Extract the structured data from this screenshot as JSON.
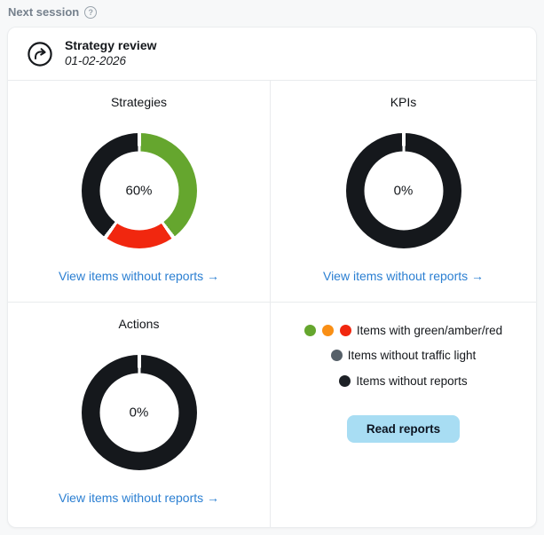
{
  "page": {
    "label": "Next session",
    "help_icon": "question-circle"
  },
  "session_card": {
    "title": "Strategy review",
    "date": "01-02-2026"
  },
  "chart_data": [
    {
      "type": "donut",
      "title": "Strategies",
      "center_label": "60%",
      "link_label": "View items without reports →",
      "segments": [
        {
          "label": "items with green",
          "value": 40,
          "color": "#65a62e"
        },
        {
          "label": "items with red",
          "value": 20,
          "color": "#f1270f"
        },
        {
          "label": "items without reports",
          "value": 40,
          "color": "#15181c"
        }
      ]
    },
    {
      "type": "donut",
      "title": "KPIs",
      "center_label": "0%",
      "link_label": "View items without reports →",
      "segments": [
        {
          "label": "items without reports",
          "value": 100,
          "color": "#15181c"
        }
      ]
    },
    {
      "type": "donut",
      "title": "Actions",
      "center_label": "0%",
      "link_label": "View items without reports →",
      "segments": [
        {
          "label": "items without reports",
          "value": 100,
          "color": "#15181c"
        }
      ]
    }
  ],
  "legend": {
    "items": [
      {
        "dots": [
          "#65a62e",
          "#f98f15",
          "#f1270f"
        ],
        "label": "Items with green/amber/red"
      },
      {
        "dots": [
          "#566069"
        ],
        "label": "Items without traffic light"
      },
      {
        "dots": [
          "#1d2126"
        ],
        "label": "Items without reports"
      }
    ]
  },
  "buttons": {
    "read_reports": "Read reports"
  },
  "colors": {
    "green": "#65a62e",
    "amber": "#f98f15",
    "red": "#f1270f",
    "gray": "#566069",
    "black": "#15181c",
    "link_blue": "#2b7fd2",
    "button_bg": "#a8ddf3",
    "page_bg": "#f7f8f9",
    "border": "#e9ebed",
    "muted_text": "#76818d"
  }
}
